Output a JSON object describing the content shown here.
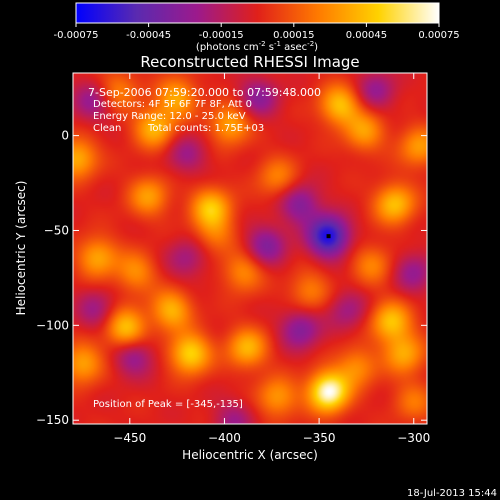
{
  "chart_data": {
    "type": "heatmap",
    "title": "Reconstructed RHESSI Image",
    "xlabel": "Heliocentric X (arcsec)",
    "ylabel": "Heliocentric Y (arcsec)",
    "xlim": [
      -480,
      -293
    ],
    "ylim": [
      -152,
      33
    ],
    "xticks": [
      -450,
      -400,
      -350,
      -300
    ],
    "yticks": [
      -150,
      -100,
      -50,
      0
    ],
    "colorbar": {
      "range": [
        -0.00075,
        0.00075
      ],
      "ticks": [
        "-0.00075",
        "-0.00045",
        "-0.00015",
        "0.00015",
        "0.00045",
        "0.00075"
      ],
      "label_prefix": "(photons cm",
      "label_exp1": "-2",
      "label_mid": " s",
      "label_exp2": "-1",
      "label_mid2": " asec",
      "label_exp3": "-2",
      "label_suffix": ")",
      "colors": [
        "#0000ff",
        "#5a2ab0",
        "#9c1a8c",
        "#e0201a",
        "#ff7a00",
        "#ffd200",
        "#ffffff"
      ]
    },
    "annotations": {
      "time": "7-Sep-2006 07:59:20.000 to 07:59:48.000",
      "detectors": "Detectors: 4F 5F 6F 7F 8F, Att 0",
      "energy": "Energy Range: 12.0 - 25.0 keV",
      "method": "Clean",
      "counts": "Total counts: 1.75E+03",
      "peak": "Position of Peak = [-345,-135]"
    },
    "blobs": [
      {
        "x": -345,
        "y": -135,
        "v": 1.0
      },
      {
        "x": -418,
        "y": -115,
        "v": 0.7
      },
      {
        "x": -452,
        "y": -102,
        "v": 0.65
      },
      {
        "x": -428,
        "y": -92,
        "v": 0.55
      },
      {
        "x": -388,
        "y": -112,
        "v": 0.55
      },
      {
        "x": -475,
        "y": -120,
        "v": 0.5
      },
      {
        "x": -312,
        "y": -98,
        "v": 0.6
      },
      {
        "x": -305,
        "y": -115,
        "v": 0.5
      },
      {
        "x": -372,
        "y": -138,
        "v": 0.45
      },
      {
        "x": -407,
        "y": -38,
        "v": 0.6
      },
      {
        "x": -437,
        "y": 4,
        "v": 0.55
      },
      {
        "x": -440,
        "y": -32,
        "v": 0.45
      },
      {
        "x": -425,
        "y": 20,
        "v": 0.5
      },
      {
        "x": -397,
        "y": 6,
        "v": 0.5
      },
      {
        "x": -339,
        "y": 16,
        "v": 0.6
      },
      {
        "x": -326,
        "y": 2,
        "v": 0.45
      },
      {
        "x": -310,
        "y": -36,
        "v": 0.6
      },
      {
        "x": -297,
        "y": -6,
        "v": 0.45
      },
      {
        "x": -478,
        "y": -12,
        "v": 0.55
      },
      {
        "x": -467,
        "y": -64,
        "v": 0.5
      },
      {
        "x": -447,
        "y": -72,
        "v": 0.4
      },
      {
        "x": -390,
        "y": -72,
        "v": 0.4
      },
      {
        "x": -355,
        "y": -82,
        "v": 0.35
      },
      {
        "x": -322,
        "y": -68,
        "v": 0.35
      },
      {
        "x": -372,
        "y": -22,
        "v": 0.35
      },
      {
        "x": -300,
        "y": -140,
        "v": 0.3
      },
      {
        "x": -456,
        "y": 24,
        "v": 0.35
      },
      {
        "x": -330,
        "y": -122,
        "v": 0.4
      },
      {
        "x": -405,
        "y": -52,
        "v": 0.3
      },
      {
        "x": -345,
        "y": -53,
        "v": -0.9
      },
      {
        "x": -360,
        "y": -36,
        "v": -0.45
      },
      {
        "x": -378,
        "y": -58,
        "v": -0.45
      },
      {
        "x": -382,
        "y": 20,
        "v": -0.4
      },
      {
        "x": -360,
        "y": -102,
        "v": -0.45
      },
      {
        "x": -448,
        "y": -116,
        "v": -0.4
      },
      {
        "x": -320,
        "y": 24,
        "v": -0.35
      },
      {
        "x": -470,
        "y": 18,
        "v": -0.35
      },
      {
        "x": -300,
        "y": -72,
        "v": -0.35
      },
      {
        "x": -420,
        "y": -65,
        "v": -0.3
      },
      {
        "x": -335,
        "y": -92,
        "v": -0.3
      },
      {
        "x": -468,
        "y": -92,
        "v": -0.3
      },
      {
        "x": -395,
        "y": -150,
        "v": -0.3
      },
      {
        "x": -420,
        "y": -10,
        "v": -0.3
      }
    ]
  },
  "footer": {
    "timestamp": "18-Jul-2013 15:44"
  }
}
